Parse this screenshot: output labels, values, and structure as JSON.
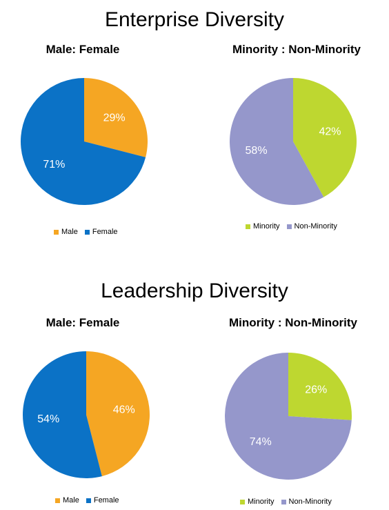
{
  "sections": [
    {
      "title": "Enterprise Diversity",
      "charts": [
        {
          "title": "Male: Female",
          "slices": [
            {
              "name": "Male",
              "value": 29,
              "label": "29%",
              "color": "#F5A623"
            },
            {
              "name": "Female",
              "value": 71,
              "label": "71%",
              "color": "#0B72C6"
            }
          ],
          "legend": [
            "Male",
            "Female"
          ]
        },
        {
          "title": "Minority : Non-Minority",
          "slices": [
            {
              "name": "Minority",
              "value": 42,
              "label": "42%",
              "color": "#BED730"
            },
            {
              "name": "Non-Minority",
              "value": 58,
              "label": "58%",
              "color": "#9597CB"
            }
          ],
          "legend": [
            "Minority",
            "Non-Minority"
          ]
        }
      ]
    },
    {
      "title": "Leadership Diversity",
      "charts": [
        {
          "title": "Male: Female",
          "slices": [
            {
              "name": "Male",
              "value": 46,
              "label": "46%",
              "color": "#F5A623"
            },
            {
              "name": "Female",
              "value": 54,
              "label": "54%",
              "color": "#0B72C6"
            }
          ],
          "legend": [
            "Male",
            "Female"
          ]
        },
        {
          "title": "Minority : Non-Minority",
          "slices": [
            {
              "name": "Minority",
              "value": 26,
              "label": "26%",
              "color": "#BED730"
            },
            {
              "name": "Non-Minority",
              "value": 74,
              "label": "74%",
              "color": "#9597CB"
            }
          ],
          "legend": [
            "Minority",
            "Non-Minority"
          ]
        }
      ]
    }
  ],
  "chart_data": [
    {
      "type": "pie",
      "title": "Male: Female",
      "group": "Enterprise Diversity",
      "categories": [
        "Male",
        "Female"
      ],
      "values": [
        29,
        71
      ],
      "legend": "bottom"
    },
    {
      "type": "pie",
      "title": "Minority : Non-Minority",
      "group": "Enterprise Diversity",
      "categories": [
        "Minority",
        "Non-Minority"
      ],
      "values": [
        42,
        58
      ],
      "legend": "bottom"
    },
    {
      "type": "pie",
      "title": "Male: Female",
      "group": "Leadership Diversity",
      "categories": [
        "Male",
        "Female"
      ],
      "values": [
        46,
        54
      ],
      "legend": "bottom"
    },
    {
      "type": "pie",
      "title": "Minority : Non-Minority",
      "group": "Leadership Diversity",
      "categories": [
        "Minority",
        "Non-Minority"
      ],
      "values": [
        26,
        74
      ],
      "legend": "bottom"
    }
  ]
}
